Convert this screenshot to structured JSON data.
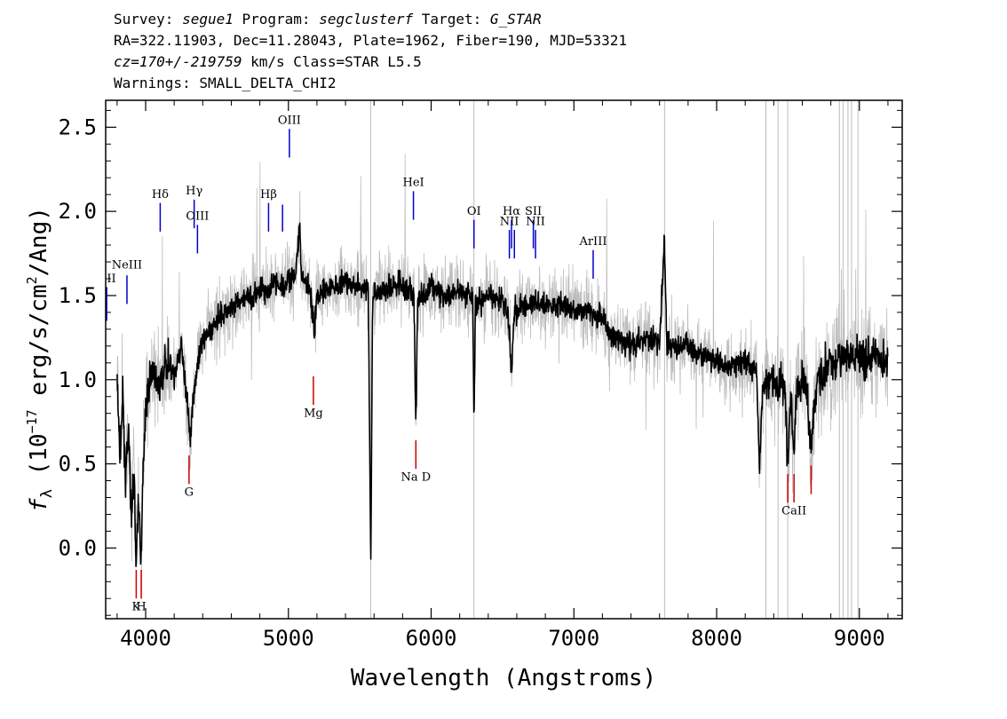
{
  "header": {
    "line1": {
      "survey_label": "Survey: ",
      "survey": "segue1",
      "program_label": " Program: ",
      "program": "segclusterf",
      "target_label": " Target: ",
      "target": "G_STAR"
    },
    "line2": "RA=322.11903, Dec=11.28043, Plate=1962, Fiber=190, MJD=53321",
    "line3": {
      "cz": "cz=170+/-219759",
      "rest": " km/s Class=STAR L5.5"
    },
    "line4": "Warnings: SMALL_DELTA_CHI2"
  },
  "chart_data": {
    "type": "line",
    "xlabel": "Wavelength (Angstroms)",
    "ylabel": "f_λ (10^-17 erg/s/cm^2/Ang)",
    "ylabel_parts": {
      "sym": "f",
      "sub": "λ",
      "pre": " (10",
      "exp": "−17",
      "mid": " erg/s/cm",
      "exp2": "2",
      "post": "/Ang)"
    },
    "xlim": [
      3720,
      9300
    ],
    "ylim": [
      -0.42,
      2.66
    ],
    "x_ticks": [
      4000,
      5000,
      6000,
      7000,
      8000,
      9000
    ],
    "x_tick_labels": [
      "4000",
      "5000",
      "6000",
      "7000",
      "8000",
      "9000"
    ],
    "y_ticks": [
      0.0,
      0.5,
      1.0,
      1.5,
      2.0,
      2.5
    ],
    "y_tick_labels": [
      "0.0",
      "0.5",
      "1.0",
      "1.5",
      "2.0",
      "2.5"
    ],
    "series": [
      {
        "role": "flux",
        "color": "#000000",
        "points": [
          [
            3800,
            1.0
          ],
          [
            3820,
            0.55
          ],
          [
            3840,
            0.9
          ],
          [
            3860,
            0.4
          ],
          [
            3880,
            0.7
          ],
          [
            3900,
            0.2
          ],
          [
            3920,
            0.45
          ],
          [
            3933,
            -0.1
          ],
          [
            3950,
            0.3
          ],
          [
            3968,
            -0.08
          ],
          [
            3985,
            0.55
          ],
          [
            4000,
            0.85
          ],
          [
            4050,
            1.05
          ],
          [
            4100,
            0.95
          ],
          [
            4150,
            1.12
          ],
          [
            4200,
            1.0
          ],
          [
            4250,
            1.2
          ],
          [
            4300,
            0.8
          ],
          [
            4310,
            0.6
          ],
          [
            4330,
            0.9
          ],
          [
            4400,
            1.25
          ],
          [
            4450,
            1.3
          ],
          [
            4500,
            1.35
          ],
          [
            4550,
            1.4
          ],
          [
            4600,
            1.42
          ],
          [
            4650,
            1.45
          ],
          [
            4700,
            1.5
          ],
          [
            4750,
            1.48
          ],
          [
            4800,
            1.55
          ],
          [
            4850,
            1.5
          ],
          [
            4900,
            1.58
          ],
          [
            4950,
            1.55
          ],
          [
            5000,
            1.6
          ],
          [
            5050,
            1.62
          ],
          [
            5080,
            1.9
          ],
          [
            5090,
            1.6
          ],
          [
            5150,
            1.55
          ],
          [
            5183,
            1.3
          ],
          [
            5200,
            1.5
          ],
          [
            5300,
            1.55
          ],
          [
            5400,
            1.58
          ],
          [
            5500,
            1.55
          ],
          [
            5560,
            1.55
          ],
          [
            5577,
            -0.14
          ],
          [
            5590,
            1.5
          ],
          [
            5700,
            1.55
          ],
          [
            5800,
            1.58
          ],
          [
            5880,
            1.5
          ],
          [
            5893,
            0.69
          ],
          [
            5905,
            1.45
          ],
          [
            6000,
            1.55
          ],
          [
            6100,
            1.5
          ],
          [
            6200,
            1.52
          ],
          [
            6290,
            1.5
          ],
          [
            6300,
            0.74
          ],
          [
            6310,
            1.45
          ],
          [
            6400,
            1.5
          ],
          [
            6500,
            1.48
          ],
          [
            6540,
            1.4
          ],
          [
            6563,
            1.05
          ],
          [
            6580,
            1.4
          ],
          [
            6700,
            1.45
          ],
          [
            6800,
            1.45
          ],
          [
            6900,
            1.44
          ],
          [
            7000,
            1.42
          ],
          [
            7100,
            1.4
          ],
          [
            7200,
            1.38
          ],
          [
            7250,
            1.25
          ],
          [
            7300,
            1.25
          ],
          [
            7400,
            1.2
          ],
          [
            7500,
            1.25
          ],
          [
            7600,
            1.2
          ],
          [
            7635,
            1.85
          ],
          [
            7650,
            1.2
          ],
          [
            7700,
            1.2
          ],
          [
            7800,
            1.2
          ],
          [
            7900,
            1.15
          ],
          [
            8000,
            1.1
          ],
          [
            8100,
            1.08
          ],
          [
            8200,
            1.1
          ],
          [
            8280,
            1.05
          ],
          [
            8300,
            0.45
          ],
          [
            8320,
            0.95
          ],
          [
            8400,
            1.0
          ],
          [
            8480,
            0.95
          ],
          [
            8498,
            0.5
          ],
          [
            8520,
            0.9
          ],
          [
            8542,
            0.55
          ],
          [
            8560,
            0.95
          ],
          [
            8620,
            1.0
          ],
          [
            8662,
            0.6
          ],
          [
            8700,
            1.0
          ],
          [
            8800,
            1.1
          ],
          [
            8900,
            1.15
          ],
          [
            9000,
            1.1
          ],
          [
            9100,
            1.15
          ],
          [
            9200,
            1.1
          ]
        ]
      }
    ],
    "line_markers": [
      {
        "label": "OII",
        "wave": 3727,
        "y0": 1.35,
        "y1": 1.55,
        "color": "#0000cc",
        "label_y": 1.58,
        "label_side": "above"
      },
      {
        "label": "NeIII",
        "wave": 3869,
        "y0": 1.45,
        "y1": 1.62,
        "color": "#0000cc",
        "label_y": 1.66,
        "label_side": "above"
      },
      {
        "label": "Hδ",
        "wave": 4102,
        "y0": 1.88,
        "y1": 2.05,
        "color": "#0000cc",
        "label_y": 2.08,
        "label_side": "above"
      },
      {
        "label": "Hγ",
        "wave": 4340,
        "y0": 1.9,
        "y1": 2.07,
        "color": "#0000cc",
        "label_y": 2.1,
        "label_side": "above"
      },
      {
        "label": "OIII",
        "wave": 4363,
        "y0": 1.75,
        "y1": 1.92,
        "color": "#0000cc",
        "label_y": 1.95,
        "label_side": "above"
      },
      {
        "label": "Hβ",
        "wave": 4861,
        "y0": 1.88,
        "y1": 2.05,
        "color": "#0000cc",
        "label_y": 2.08,
        "label_side": "above"
      },
      {
        "label": "",
        "wave": 4959,
        "y0": 1.88,
        "y1": 2.04,
        "color": "#0000cc",
        "label_y": 0,
        "label_side": "none"
      },
      {
        "label": "OIII",
        "wave": 5007,
        "y0": 2.32,
        "y1": 2.49,
        "color": "#0000cc",
        "label_y": 2.52,
        "label_side": "above"
      },
      {
        "label": "HeI",
        "wave": 5876,
        "y0": 1.95,
        "y1": 2.12,
        "color": "#0000cc",
        "label_y": 2.15,
        "label_side": "above"
      },
      {
        "label": "OI",
        "wave": 6300,
        "y0": 1.78,
        "y1": 1.95,
        "color": "#0000cc",
        "label_y": 1.98,
        "label_side": "above"
      },
      {
        "label": "NII",
        "wave": 6548,
        "y0": 1.72,
        "y1": 1.89,
        "color": "#0000cc",
        "label_y": 1.92,
        "label_side": "above"
      },
      {
        "label": "Hα",
        "wave": 6563,
        "y0": 1.78,
        "y1": 1.95,
        "color": "#0000cc",
        "label_y": 1.98,
        "label_side": "above"
      },
      {
        "label": "",
        "wave": 6583,
        "y0": 1.72,
        "y1": 1.89,
        "color": "#0000cc",
        "label_y": 0,
        "label_side": "none"
      },
      {
        "label": "SII",
        "wave": 6716,
        "y0": 1.78,
        "y1": 1.95,
        "color": "#0000cc",
        "label_y": 1.98,
        "label_side": "above"
      },
      {
        "label": "NII",
        "wave": 6731,
        "y0": 1.72,
        "y1": 1.89,
        "color": "#0000cc",
        "label_y": 1.92,
        "label_side": "above"
      },
      {
        "label": "ArIII",
        "wave": 7135,
        "y0": 1.6,
        "y1": 1.77,
        "color": "#0000cc",
        "label_y": 1.8,
        "label_side": "above"
      },
      {
        "label": "Mg",
        "wave": 5175,
        "y0": 0.85,
        "y1": 1.02,
        "color": "#cc0000",
        "label_y": 0.78,
        "label_side": "below"
      },
      {
        "label": "G",
        "wave": 4304,
        "y0": 0.38,
        "y1": 0.55,
        "color": "#cc0000",
        "label_y": 0.31,
        "label_side": "below"
      },
      {
        "label": "Na D",
        "wave": 5893,
        "y0": 0.47,
        "y1": 0.64,
        "color": "#cc0000",
        "label_y": 0.4,
        "label_side": "below"
      },
      {
        "label": "K",
        "wave": 3934,
        "y0": -0.3,
        "y1": -0.13,
        "color": "#cc0000",
        "label_y": -0.37,
        "label_side": "below"
      },
      {
        "label": "H",
        "wave": 3969,
        "y0": -0.3,
        "y1": -0.13,
        "color": "#cc0000",
        "label_y": -0.37,
        "label_side": "below"
      },
      {
        "label": "CaII",
        "wave": 8542,
        "y0": 0.27,
        "y1": 0.44,
        "color": "#cc0000",
        "label_y": 0.2,
        "label_side": "below"
      },
      {
        "label": "",
        "wave": 8498,
        "y0": 0.27,
        "y1": 0.44,
        "color": "#cc0000",
        "label_y": 0,
        "label_side": "none"
      },
      {
        "label": "",
        "wave": 8662,
        "y0": 0.32,
        "y1": 0.49,
        "color": "#cc0000",
        "label_y": 0,
        "label_side": "none"
      }
    ],
    "colors": {
      "noise": "#bdbdbd",
      "flux": "#000000",
      "emission": "#0000cc",
      "absorption": "#cc0000"
    }
  }
}
